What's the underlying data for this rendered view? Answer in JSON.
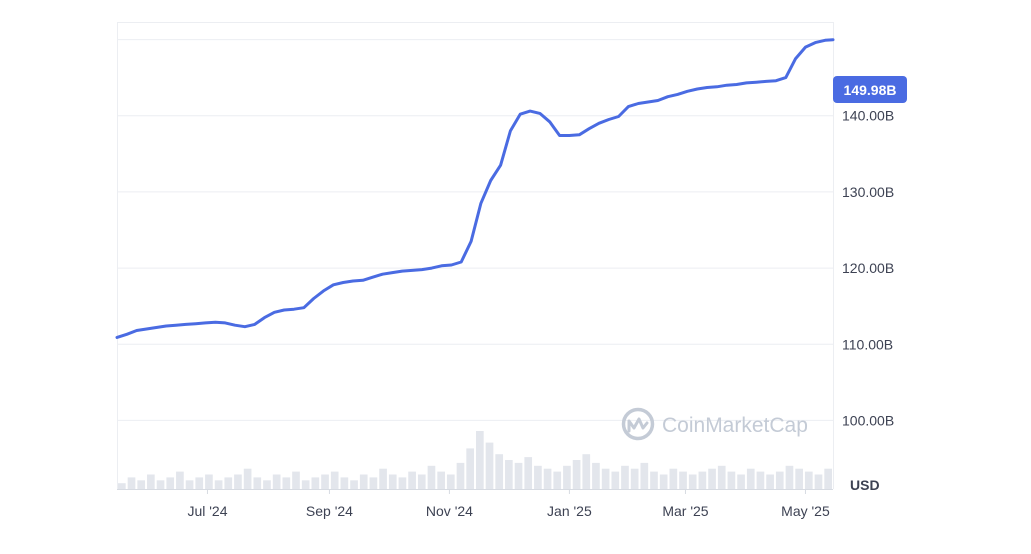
{
  "chart_data": {
    "type": "line",
    "unit": "USD",
    "watermark": "CoinMarketCap",
    "current_value_label": "149.98B",
    "y_tick_labels": [
      "100.00B",
      "110.00B",
      "120.00B",
      "130.00B",
      "140.00B"
    ],
    "y_ticks": [
      100,
      110,
      120,
      130,
      140
    ],
    "ylim": [
      91,
      152.3
    ],
    "x_tick_labels": [
      "Jul '24",
      "Sep '24",
      "Nov '24",
      "Jan '25",
      "Mar '25",
      "May '25"
    ],
    "x_ticks": [
      "2024-07-01",
      "2024-09-01",
      "2024-11-01",
      "2025-01-01",
      "2025-03-01",
      "2025-05-01"
    ],
    "xlim": [
      "2024-05-16",
      "2025-05-15"
    ],
    "grid": true,
    "line_color": "#4a6be2",
    "volume_color": "#e3e6ec",
    "series": [
      {
        "x": [
          "2024-05-16",
          "2024-05-21",
          "2024-05-26",
          "2024-05-31",
          "2024-06-05",
          "2024-06-10",
          "2024-06-15",
          "2024-06-20",
          "2024-06-25",
          "2024-06-30",
          "2024-07-05",
          "2024-07-10",
          "2024-07-15",
          "2024-07-20",
          "2024-07-25",
          "2024-07-30",
          "2024-08-04",
          "2024-08-09",
          "2024-08-14",
          "2024-08-19",
          "2024-08-24",
          "2024-08-29",
          "2024-09-03",
          "2024-09-08",
          "2024-09-13",
          "2024-09-18",
          "2024-09-23",
          "2024-09-28",
          "2024-10-03",
          "2024-10-08",
          "2024-10-13",
          "2024-10-18",
          "2024-10-23",
          "2024-10-28",
          "2024-11-02",
          "2024-11-07",
          "2024-11-12",
          "2024-11-17",
          "2024-11-22",
          "2024-11-27",
          "2024-12-02",
          "2024-12-07",
          "2024-12-12",
          "2024-12-17",
          "2024-12-22",
          "2024-12-27",
          "2025-01-01",
          "2025-01-06",
          "2025-01-11",
          "2025-01-16",
          "2025-01-21",
          "2025-01-26",
          "2025-01-31",
          "2025-02-05",
          "2025-02-10",
          "2025-02-15",
          "2025-02-20",
          "2025-02-25",
          "2025-03-02",
          "2025-03-07",
          "2025-03-12",
          "2025-03-17",
          "2025-03-22",
          "2025-03-27",
          "2025-04-01",
          "2025-04-06",
          "2025-04-11",
          "2025-04-16",
          "2025-04-21",
          "2025-04-26",
          "2025-05-01",
          "2025-05-06",
          "2025-05-11",
          "2025-05-15"
        ],
        "y": [
          110.9,
          111.3,
          111.8,
          112.0,
          112.2,
          112.4,
          112.5,
          112.6,
          112.7,
          112.8,
          112.9,
          112.8,
          112.5,
          112.3,
          112.6,
          113.5,
          114.2,
          114.5,
          114.6,
          114.8,
          116.0,
          117.0,
          117.8,
          118.1,
          118.3,
          118.4,
          118.8,
          119.2,
          119.4,
          119.6,
          119.7,
          119.8,
          120.0,
          120.3,
          120.4,
          120.8,
          123.5,
          128.5,
          131.5,
          133.5,
          138.0,
          140.2,
          140.6,
          140.3,
          139.2,
          137.4,
          137.4,
          137.5,
          138.3,
          139.0,
          139.5,
          139.9,
          141.2,
          141.6,
          141.8,
          142.0,
          142.5,
          142.8,
          143.2,
          143.5,
          143.7,
          143.8,
          144.0,
          144.1,
          144.3,
          144.4,
          144.5,
          144.6,
          145.0,
          147.5,
          149.0,
          149.6,
          149.9,
          149.98
        ]
      }
    ],
    "volume": [
      2,
      4,
      3,
      5,
      3,
      4,
      6,
      3,
      4,
      5,
      3,
      4,
      5,
      7,
      4,
      3,
      5,
      4,
      6,
      3,
      4,
      5,
      6,
      4,
      3,
      5,
      4,
      7,
      5,
      4,
      6,
      5,
      8,
      6,
      5,
      9,
      14,
      20,
      16,
      12,
      10,
      9,
      11,
      8,
      7,
      6,
      8,
      10,
      12,
      9,
      7,
      6,
      8,
      7,
      9,
      6,
      5,
      7,
      6,
      5,
      6,
      7,
      8,
      6,
      5,
      7,
      6,
      5,
      6,
      8,
      7,
      6,
      5,
      7
    ]
  }
}
